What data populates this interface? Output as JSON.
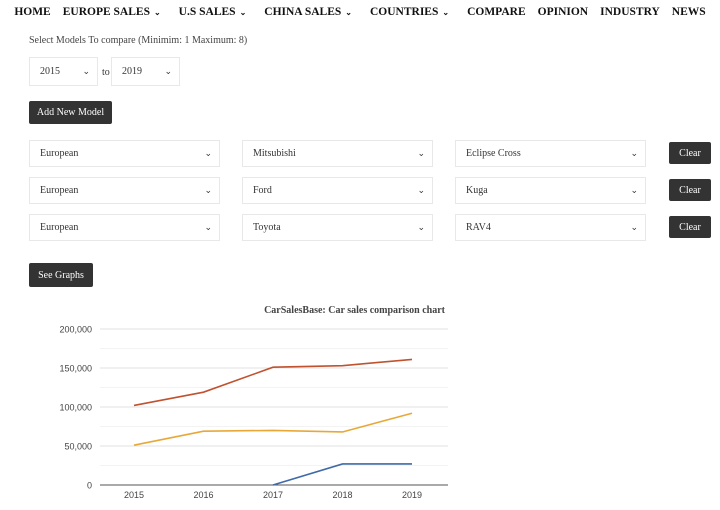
{
  "nav": [
    {
      "label": "HOME",
      "dropdown": false
    },
    {
      "label": "EUROPE SALES",
      "dropdown": true
    },
    {
      "label": "U.S SALES",
      "dropdown": true
    },
    {
      "label": "CHINA SALES",
      "dropdown": true
    },
    {
      "label": "COUNTRIES",
      "dropdown": true
    },
    {
      "label": "COMPARE",
      "dropdown": false
    },
    {
      "label": "OPINION",
      "dropdown": false
    },
    {
      "label": "INDUSTRY",
      "dropdown": false
    },
    {
      "label": "NEWS",
      "dropdown": false
    }
  ],
  "hint": "Select Models To compare (Minimim: 1 Maximum: 8)",
  "year_from": "2015",
  "year_to": "2019",
  "to_label": "to",
  "add_model_label": "Add New Model",
  "rows": [
    {
      "region": "European",
      "brand": "Mitsubishi",
      "model": "Eclipse Cross",
      "clear": "Clear"
    },
    {
      "region": "European",
      "brand": "Ford",
      "model": "Kuga",
      "clear": "Clear"
    },
    {
      "region": "European",
      "brand": "Toyota",
      "model": "RAV4",
      "clear": "Clear"
    }
  ],
  "see_graphs_label": "See Graphs",
  "chart_data": {
    "type": "line",
    "title": "CarSalesBase: Car sales comparison chart",
    "categories": [
      "2015",
      "2016",
      "2017",
      "2018",
      "2019"
    ],
    "yticks": [
      "0",
      "50,000",
      "100,000",
      "150,000",
      "200,000"
    ],
    "ylim": [
      0,
      200000
    ],
    "grid": true,
    "series": [
      {
        "color": "#c0522f",
        "values": [
          102000,
          119000,
          151000,
          153000,
          161000
        ]
      },
      {
        "color": "#e8a838",
        "values": [
          51000,
          69000,
          70000,
          68000,
          92000
        ]
      },
      {
        "color": "#3f6aa8",
        "values": [
          null,
          null,
          0,
          27000,
          27000
        ]
      }
    ]
  }
}
